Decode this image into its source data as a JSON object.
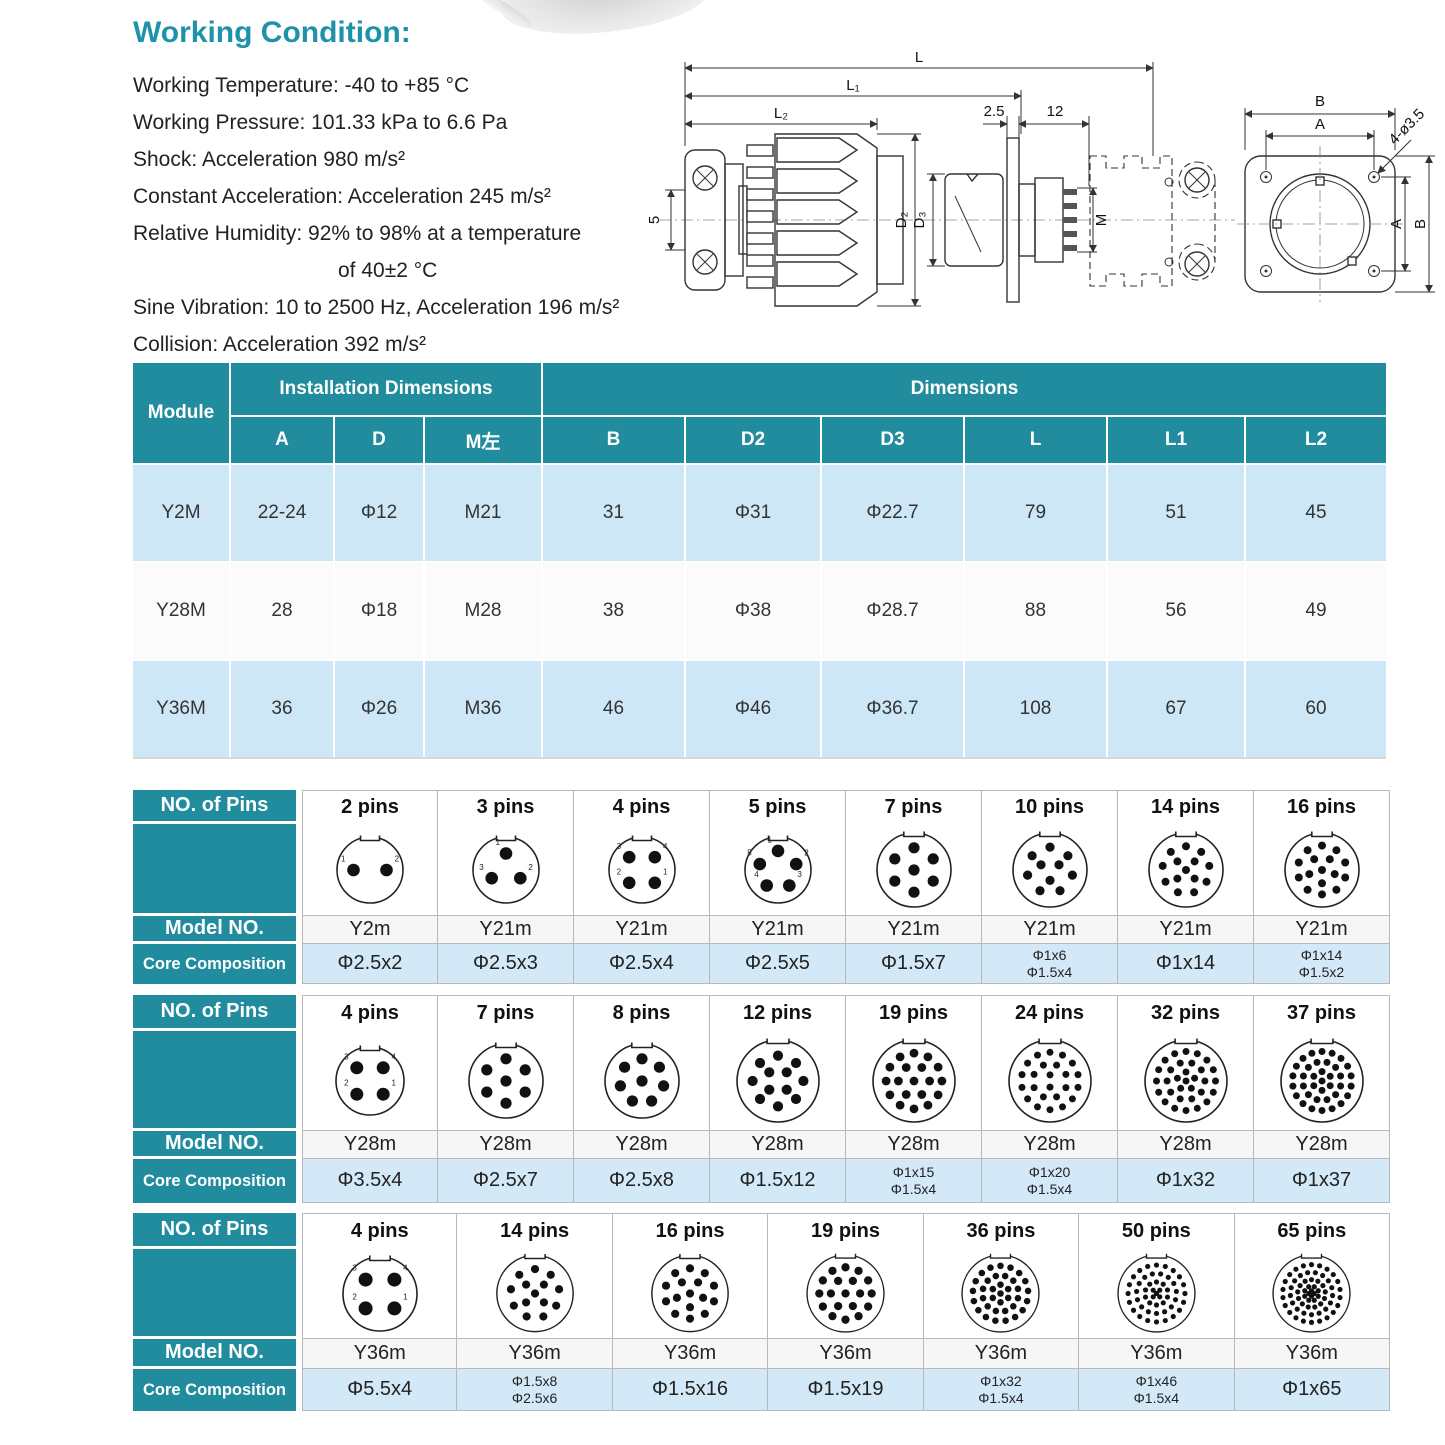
{
  "colors": {
    "teal": "#218c9e",
    "title_teal": "#1d92aa",
    "row_blue": "#cde7f6",
    "core_blue": "#d3e9f8"
  },
  "working_condition": {
    "title": "Working Condition:",
    "lines": [
      "Working Temperature: -40 to +85 °C",
      "Working Pressure: 101.33 kPa to 6.6 Pa",
      "Shock: Acceleration 980 m/s²",
      "Constant Acceleration: Acceleration 245 m/s²",
      "Relative Humidity: 92% to 98% at a temperature",
      "of 40±2 °C",
      "Sine Vibration: 10 to 2500 Hz, Acceleration 196 m/s²",
      "Collision: Acceleration 392 m/s²"
    ]
  },
  "drawing": {
    "labels": {
      "L": "L",
      "L1": "L₁",
      "L2": "L₂",
      "d5": "5",
      "d25": "2.5",
      "d12": "12",
      "D2": "D₂",
      "D3": "D₃",
      "M": "M",
      "B_top": "B",
      "A_top": "A",
      "A_side": "A",
      "B_side": "B",
      "holes": "4-ø3.5"
    }
  },
  "dimensions_table": {
    "module_header": "Module",
    "installation_header": "Installation Dimensions",
    "dimensions_header": "Dimensions",
    "install_cols": [
      "A",
      "D",
      "M左"
    ],
    "dim_cols": [
      "B",
      "D2",
      "D3",
      "L",
      "L1",
      "L2"
    ],
    "rows": [
      {
        "module": "Y2M",
        "values": [
          "22-24",
          "Φ12",
          "M21",
          "31",
          "Φ31",
          "Φ22.7",
          "79",
          "51",
          "45"
        ]
      },
      {
        "module": "Y28M",
        "values": [
          "28",
          "Φ18",
          "M28",
          "38",
          "Φ38",
          "Φ28.7",
          "88",
          "56",
          "49"
        ]
      },
      {
        "module": "Y36M",
        "values": [
          "36",
          "Φ26",
          "M36",
          "46",
          "Φ46",
          "Φ36.7",
          "108",
          "67",
          "60"
        ]
      }
    ]
  },
  "pin_tables": [
    {
      "row_labels": {
        "pins": "NO. of Pins",
        "model": "Model NO.",
        "core": "Core Composition"
      },
      "columns": [
        {
          "pins_label": "2 pins",
          "pin_count": 2,
          "model": "Y2m",
          "core": [
            "Φ2.5x2"
          ]
        },
        {
          "pins_label": "3 pins",
          "pin_count": 3,
          "model": "Y21m",
          "core": [
            "Φ2.5x3"
          ]
        },
        {
          "pins_label": "4 pins",
          "pin_count": 4,
          "model": "Y21m",
          "core": [
            "Φ2.5x4"
          ]
        },
        {
          "pins_label": "5 pins",
          "pin_count": 5,
          "model": "Y21m",
          "core": [
            "Φ2.5x5"
          ]
        },
        {
          "pins_label": "7 pins",
          "pin_count": 7,
          "model": "Y21m",
          "core": [
            "Φ1.5x7"
          ]
        },
        {
          "pins_label": "10 pins",
          "pin_count": 10,
          "model": "Y21m",
          "core": [
            "Φ1x6",
            "Φ1.5x4"
          ]
        },
        {
          "pins_label": "14 pins",
          "pin_count": 14,
          "model": "Y21m",
          "core": [
            "Φ1x14"
          ]
        },
        {
          "pins_label": "16 pins",
          "pin_count": 16,
          "model": "Y21m",
          "core": [
            "Φ1x14",
            "Φ1.5x2"
          ]
        }
      ]
    },
    {
      "row_labels": {
        "pins": "NO. of Pins",
        "model": "Model NO.",
        "core": "Core Composition"
      },
      "columns": [
        {
          "pins_label": "4 pins",
          "pin_count": 4,
          "model": "Y28m",
          "core": [
            "Φ3.5x4"
          ]
        },
        {
          "pins_label": "7 pins",
          "pin_count": 7,
          "model": "Y28m",
          "core": [
            "Φ2.5x7"
          ]
        },
        {
          "pins_label": "8 pins",
          "pin_count": 8,
          "model": "Y28m",
          "core": [
            "Φ2.5x8"
          ]
        },
        {
          "pins_label": "12 pins",
          "pin_count": 12,
          "model": "Y28m",
          "core": [
            "Φ1.5x12"
          ]
        },
        {
          "pins_label": "19 pins",
          "pin_count": 19,
          "model": "Y28m",
          "core": [
            "Φ1x15",
            "Φ1.5x4"
          ]
        },
        {
          "pins_label": "24 pins",
          "pin_count": 24,
          "model": "Y28m",
          "core": [
            "Φ1x20",
            "Φ1.5x4"
          ]
        },
        {
          "pins_label": "32 pins",
          "pin_count": 32,
          "model": "Y28m",
          "core": [
            "Φ1x32"
          ]
        },
        {
          "pins_label": "37 pins",
          "pin_count": 37,
          "model": "Y28m",
          "core": [
            "Φ1x37"
          ]
        }
      ]
    },
    {
      "row_labels": {
        "pins": "NO. of Pins",
        "model": "Model NO.",
        "core": "Core Composition"
      },
      "columns": [
        {
          "pins_label": "4 pins",
          "pin_count": 4,
          "model": "Y36m",
          "core": [
            "Φ5.5x4"
          ]
        },
        {
          "pins_label": "14 pins",
          "pin_count": 14,
          "model": "Y36m",
          "core": [
            "Φ1.5x8",
            "Φ2.5x6"
          ]
        },
        {
          "pins_label": "16 pins",
          "pin_count": 16,
          "model": "Y36m",
          "core": [
            "Φ1.5x16"
          ]
        },
        {
          "pins_label": "19 pins",
          "pin_count": 19,
          "model": "Y36m",
          "core": [
            "Φ1.5x19"
          ]
        },
        {
          "pins_label": "36 pins",
          "pin_count": 36,
          "model": "Y36m",
          "core": [
            "Φ1x32",
            "Φ1.5x4"
          ]
        },
        {
          "pins_label": "50 pins",
          "pin_count": 50,
          "model": "Y36m",
          "core": [
            "Φ1x46",
            "Φ1.5x4"
          ]
        },
        {
          "pins_label": "65 pins",
          "pin_count": 65,
          "model": "Y36m",
          "core": [
            "Φ1x65"
          ]
        }
      ]
    }
  ]
}
